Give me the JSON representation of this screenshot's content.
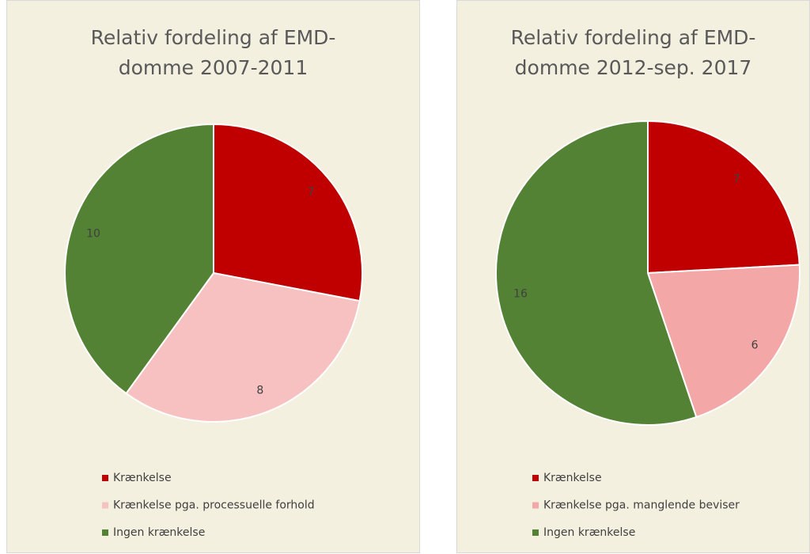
{
  "chart_data": [
    {
      "type": "pie",
      "title": "Relativ fordeling af EMD-domme 2007-2011",
      "categories": [
        "Krænkelse",
        "Krænkelse pga. processuelle forhold",
        "Ingen krænkelse"
      ],
      "values": [
        7,
        8,
        10
      ],
      "colors": [
        "#c00000",
        "#f8c1c1",
        "#548235"
      ],
      "legend": "bottom"
    },
    {
      "type": "pie",
      "title": "Relativ fordeling af EMD-domme 2012-sep. 2017",
      "categories": [
        "Krænkelse",
        "Krænkelse pga. manglende beviser",
        "Ingen krænkelse"
      ],
      "values": [
        7,
        6,
        16
      ],
      "colors": [
        "#c00000",
        "#f4a7a7",
        "#548235"
      ],
      "legend": "bottom"
    }
  ]
}
